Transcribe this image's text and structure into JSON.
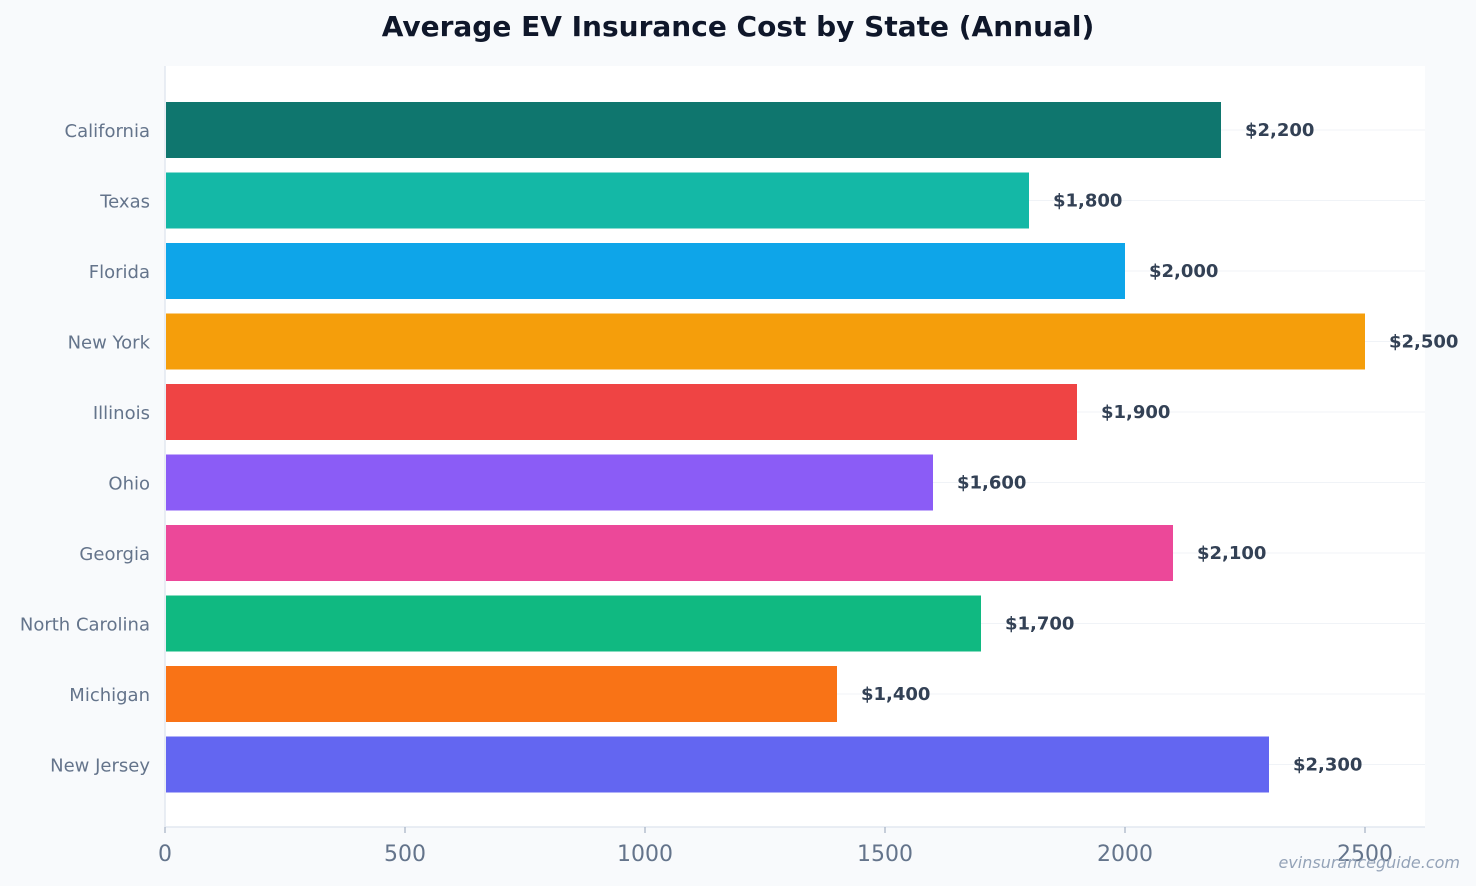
{
  "chart_data": {
    "type": "bar",
    "orientation": "horizontal",
    "title": "Average EV Insurance Cost by State (Annual)",
    "xlabel": "",
    "ylabel": "",
    "categories": [
      "California",
      "Texas",
      "Florida",
      "New York",
      "Illinois",
      "Ohio",
      "Georgia",
      "North Carolina",
      "Michigan",
      "New Jersey"
    ],
    "values": [
      2200,
      1800,
      2000,
      2500,
      1900,
      1600,
      2100,
      1700,
      1400,
      2300
    ],
    "value_labels": [
      "$2,200",
      "$1,800",
      "$2,000",
      "$2,500",
      "$1,900",
      "$1,600",
      "$2,100",
      "$1,700",
      "$1,400",
      "$2,300"
    ],
    "colors": [
      "#0f766e",
      "#14b8a6",
      "#0ea5e9",
      "#f59e0b",
      "#ef4444",
      "#8b5cf6",
      "#ec4899",
      "#10b981",
      "#f97316",
      "#6366f1"
    ],
    "xlim": [
      0,
      2625
    ],
    "xticks": [
      0,
      500,
      1000,
      1500,
      2000,
      2500
    ],
    "xtick_labels": [
      "0",
      "500",
      "1000",
      "1500",
      "2000",
      "2500"
    ],
    "grid": "horizontal"
  },
  "watermark": "evinsuranceguide.com"
}
